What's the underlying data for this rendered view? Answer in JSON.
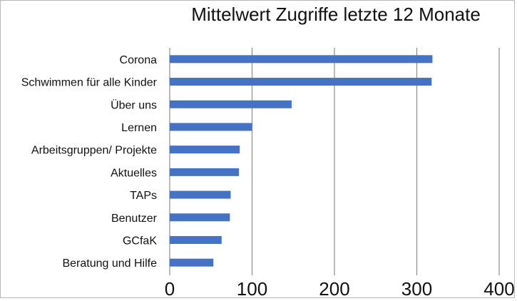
{
  "chart_data": {
    "type": "bar",
    "orientation": "horizontal",
    "title": "Mittelwert Zugriffe letzte 12 Monate",
    "xlabel": "",
    "ylabel": "",
    "categories": [
      "Corona",
      "Schwimmen für alle Kinder",
      "Über uns",
      "Lernen",
      "Arbeitsgruppen/ Projekte",
      "Aktuelles",
      "TAPs",
      "Benutzer",
      "GCfaK",
      "Beratung und Hilfe"
    ],
    "values": [
      319,
      318,
      148,
      100,
      85,
      84,
      74,
      73,
      63,
      53
    ],
    "xlim": [
      0,
      400
    ],
    "x_ticks": [
      "0",
      "100",
      "200",
      "300",
      "400"
    ],
    "grid": "vertical",
    "legend": "none",
    "bar_color": "#4472c4",
    "grid_color": "#8c8c8c"
  }
}
